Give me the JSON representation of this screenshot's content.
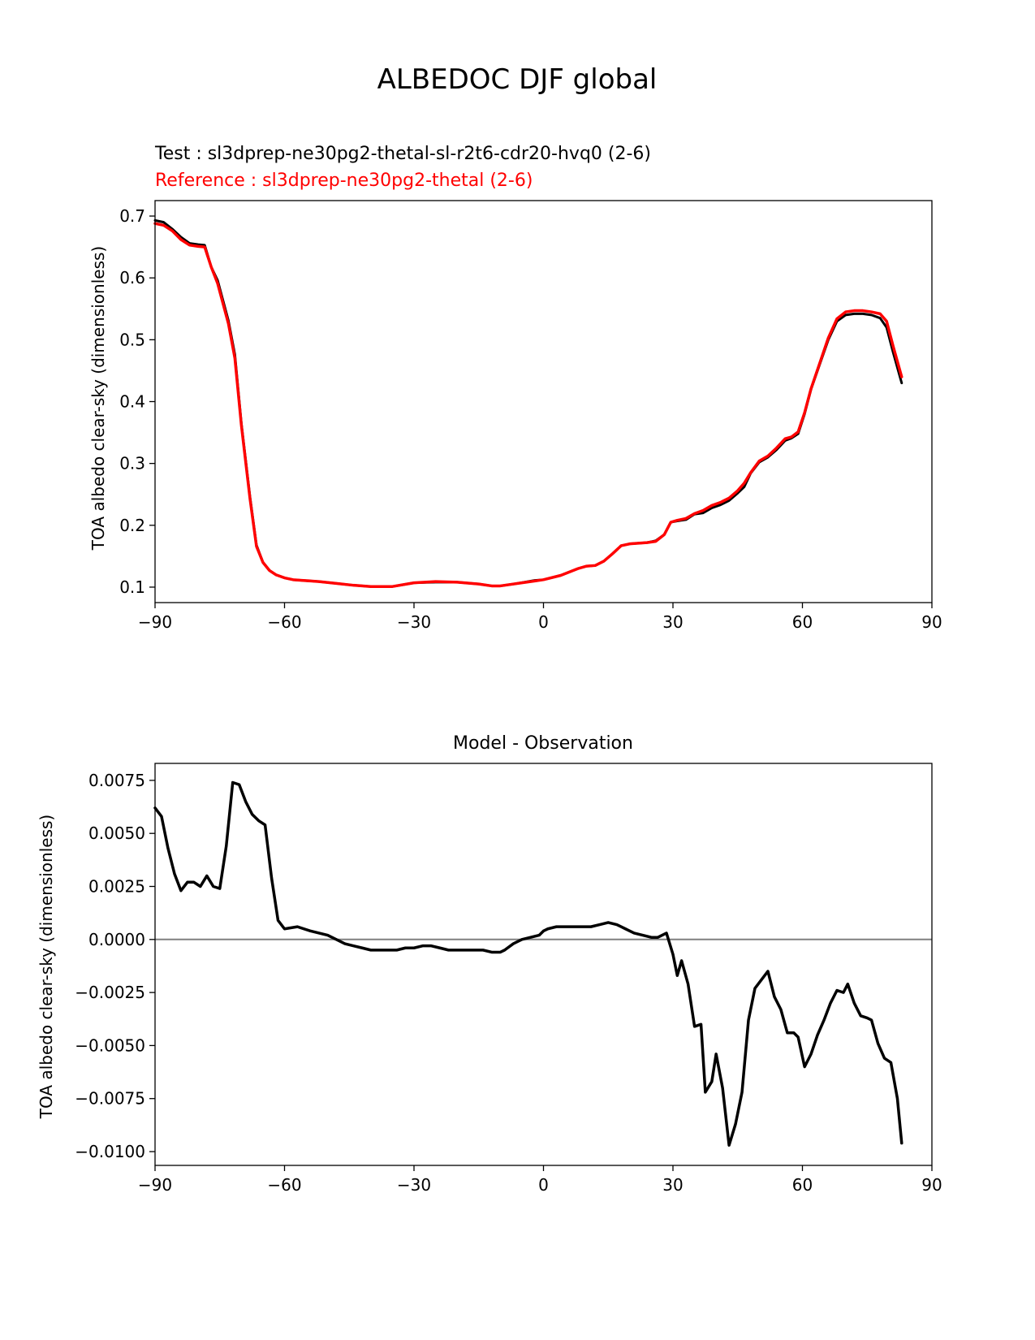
{
  "figure": {
    "title": "ALBEDOC DJF global",
    "colors": {
      "test": "#000000",
      "reference": "#ff0000",
      "zero_line": "#808080"
    }
  },
  "chart_data": [
    {
      "type": "line",
      "test_label": "Test : sl3dprep-ne30pg2-thetal-sl-r2t6-cdr20-hvq0 (2-6)",
      "reference_label": "Reference : sl3dprep-ne30pg2-thetal (2-6)",
      "xlabel": "",
      "ylabel": "TOA albedo clear-sky (dimensionless)",
      "xlim": [
        -90,
        90
      ],
      "ylim": [
        0.075,
        0.725
      ],
      "xticks": [
        -90,
        -60,
        -30,
        0,
        30,
        60,
        90
      ],
      "xtick_labels": [
        "−90",
        "−60",
        "−30",
        "0",
        "30",
        "60",
        "90"
      ],
      "yticks": [
        0.1,
        0.2,
        0.3,
        0.4,
        0.5,
        0.6,
        0.7
      ],
      "ytick_labels": [
        "0.1",
        "0.2",
        "0.3",
        "0.4",
        "0.5",
        "0.6",
        "0.7"
      ],
      "series": [
        {
          "name": "Test",
          "color": "#000000",
          "x": [
            -90,
            -88,
            -86,
            -84,
            -82,
            -80,
            -78.5,
            -77,
            -75.5,
            -73,
            -71.5,
            -70,
            -68,
            -66.5,
            -65,
            -63.5,
            -62,
            -60,
            -58,
            -56,
            -52,
            -48,
            -44,
            -40,
            -35,
            -30,
            -25,
            -20,
            -15,
            -12,
            -10,
            -6,
            -2,
            0,
            4,
            8,
            10,
            12,
            14,
            16,
            18,
            20,
            22,
            24,
            26,
            28,
            29.5,
            31,
            33,
            35,
            37,
            39,
            41,
            43,
            45,
            46.5,
            48,
            50,
            52,
            54,
            56,
            57.5,
            59,
            60.5,
            62,
            64,
            66,
            68,
            70,
            72,
            74,
            76,
            78,
            79.5,
            81,
            83
          ],
          "values": [
            0.693,
            0.69,
            0.679,
            0.666,
            0.656,
            0.654,
            0.653,
            0.618,
            0.596,
            0.531,
            0.476,
            0.365,
            0.246,
            0.168,
            0.14,
            0.127,
            0.12,
            0.115,
            0.112,
            0.111,
            0.109,
            0.106,
            0.103,
            0.101,
            0.101,
            0.107,
            0.108,
            0.108,
            0.105,
            0.102,
            0.102,
            0.106,
            0.111,
            0.112,
            0.119,
            0.13,
            0.134,
            0.135,
            0.142,
            0.154,
            0.167,
            0.17,
            0.171,
            0.172,
            0.175,
            0.185,
            0.205,
            0.207,
            0.209,
            0.218,
            0.22,
            0.228,
            0.233,
            0.24,
            0.252,
            0.262,
            0.284,
            0.302,
            0.31,
            0.322,
            0.337,
            0.341,
            0.348,
            0.38,
            0.42,
            0.46,
            0.5,
            0.53,
            0.54,
            0.542,
            0.542,
            0.54,
            0.535,
            0.52,
            0.48,
            0.43
          ]
        },
        {
          "name": "Reference",
          "color": "#ff0000",
          "x": [
            -90,
            -88,
            -86,
            -84,
            -82,
            -80,
            -78.5,
            -77,
            -75.5,
            -73,
            -71.5,
            -70,
            -68,
            -66.5,
            -65,
            -63.5,
            -62,
            -60,
            -58,
            -56,
            -52,
            -48,
            -44,
            -40,
            -35,
            -30,
            -25,
            -20,
            -15,
            -12,
            -10,
            -6,
            -2,
            0,
            4,
            8,
            10,
            12,
            14,
            16,
            18,
            20,
            22,
            24,
            26,
            28,
            29.5,
            31,
            33,
            35,
            37,
            39,
            41,
            43,
            45,
            46.5,
            48,
            50,
            52,
            54,
            56,
            57.5,
            59,
            60.5,
            62,
            64,
            66,
            68,
            70,
            72,
            74,
            76,
            78,
            79.5,
            81,
            83
          ],
          "values": [
            0.688,
            0.685,
            0.676,
            0.662,
            0.653,
            0.651,
            0.65,
            0.618,
            0.591,
            0.526,
            0.47,
            0.362,
            0.243,
            0.166,
            0.14,
            0.127,
            0.12,
            0.115,
            0.112,
            0.111,
            0.109,
            0.106,
            0.103,
            0.101,
            0.101,
            0.107,
            0.109,
            0.108,
            0.105,
            0.102,
            0.102,
            0.106,
            0.11,
            0.112,
            0.119,
            0.13,
            0.134,
            0.135,
            0.142,
            0.154,
            0.167,
            0.17,
            0.171,
            0.172,
            0.174,
            0.185,
            0.205,
            0.208,
            0.211,
            0.219,
            0.224,
            0.232,
            0.237,
            0.244,
            0.256,
            0.268,
            0.285,
            0.304,
            0.312,
            0.325,
            0.34,
            0.343,
            0.351,
            0.382,
            0.421,
            0.462,
            0.503,
            0.534,
            0.545,
            0.547,
            0.547,
            0.545,
            0.542,
            0.53,
            0.49,
            0.44
          ]
        }
      ]
    },
    {
      "type": "line",
      "title": "Model - Observation",
      "xlabel": "",
      "ylabel": "TOA albedo clear-sky (dimensionless)",
      "xlim": [
        -90,
        90
      ],
      "ylim": [
        -0.01065,
        0.0083
      ],
      "xticks": [
        -90,
        -60,
        -30,
        0,
        30,
        60,
        90
      ],
      "xtick_labels": [
        "−90",
        "−60",
        "−30",
        "0",
        "30",
        "60",
        "90"
      ],
      "yticks": [
        -0.01,
        -0.0075,
        -0.005,
        -0.0025,
        0,
        0.0025,
        0.005,
        0.0075
      ],
      "ytick_labels": [
        "−0.0100",
        "−0.0075",
        "−0.0050",
        "−0.0025",
        "0.0000",
        "0.0025",
        "0.0050",
        "0.0075"
      ],
      "zero_line": 0,
      "series": [
        {
          "name": "Model - Observation",
          "color": "#000000",
          "x": [
            -90,
            -88.5,
            -87,
            -85.5,
            -84,
            -82.5,
            -81,
            -79.5,
            -78,
            -76.5,
            -75,
            -73.5,
            -72,
            -70.5,
            -69,
            -67.5,
            -66,
            -64.5,
            -63,
            -61.5,
            -60,
            -57,
            -54,
            -52,
            -50,
            -48,
            -46,
            -44,
            -42,
            -40,
            -38,
            -36,
            -34,
            -32,
            -30,
            -28,
            -26,
            -24,
            -22,
            -20,
            -18,
            -16,
            -14,
            -12,
            -10,
            -9,
            -7,
            -5,
            -3,
            -1,
            0,
            1,
            3,
            5,
            7,
            9,
            11,
            13,
            15,
            17,
            19,
            21,
            23,
            25,
            26.5,
            28.5,
            30,
            31,
            32,
            33.5,
            35,
            36.5,
            37.5,
            39,
            40,
            41.5,
            43,
            44.5,
            46,
            47.5,
            49,
            50.5,
            52,
            53.5,
            55,
            56.5,
            58,
            59,
            60.5,
            62,
            63.5,
            65,
            66.5,
            68,
            69.5,
            70.5,
            72,
            73.5,
            75,
            76,
            77.5,
            79,
            80.5,
            82,
            83
          ],
          "values": [
            0.0062,
            0.0058,
            0.0043,
            0.0031,
            0.0023,
            0.0027,
            0.0027,
            0.0025,
            0.003,
            0.0025,
            0.0024,
            0.0044,
            0.0074,
            0.0073,
            0.0065,
            0.0059,
            0.0056,
            0.0054,
            0.0029,
            0.0009,
            0.0005,
            0.0006,
            0.0004,
            0.0003,
            0.0002,
            0.0,
            -0.0002,
            -0.0003,
            -0.0004,
            -0.0005,
            -0.0005,
            -0.0005,
            -0.0005,
            -0.0004,
            -0.0004,
            -0.0003,
            -0.0003,
            -0.0004,
            -0.0005,
            -0.0005,
            -0.0005,
            -0.0005,
            -0.0005,
            -0.0006,
            -0.0006,
            -0.0005,
            -0.0002,
            0.0,
            0.0001,
            0.0002,
            0.0004,
            0.0005,
            0.0006,
            0.0006,
            0.0006,
            0.0006,
            0.0006,
            0.0007,
            0.0008,
            0.0007,
            0.0005,
            0.0003,
            0.0002,
            0.0001,
            0.0001,
            0.0003,
            -0.0007,
            -0.0017,
            -0.001,
            -0.0021,
            -0.0041,
            -0.004,
            -0.0072,
            -0.0067,
            -0.0054,
            -0.007,
            -0.0097,
            -0.0087,
            -0.0072,
            -0.0038,
            -0.0023,
            -0.0019,
            -0.0015,
            -0.0027,
            -0.0033,
            -0.0044,
            -0.0044,
            -0.0046,
            -0.006,
            -0.0054,
            -0.0045,
            -0.0038,
            -0.003,
            -0.0024,
            -0.0025,
            -0.0021,
            -0.003,
            -0.0036,
            -0.0037,
            -0.0038,
            -0.0049,
            -0.0056,
            -0.0058,
            -0.0075,
            -0.0096
          ]
        }
      ]
    }
  ]
}
